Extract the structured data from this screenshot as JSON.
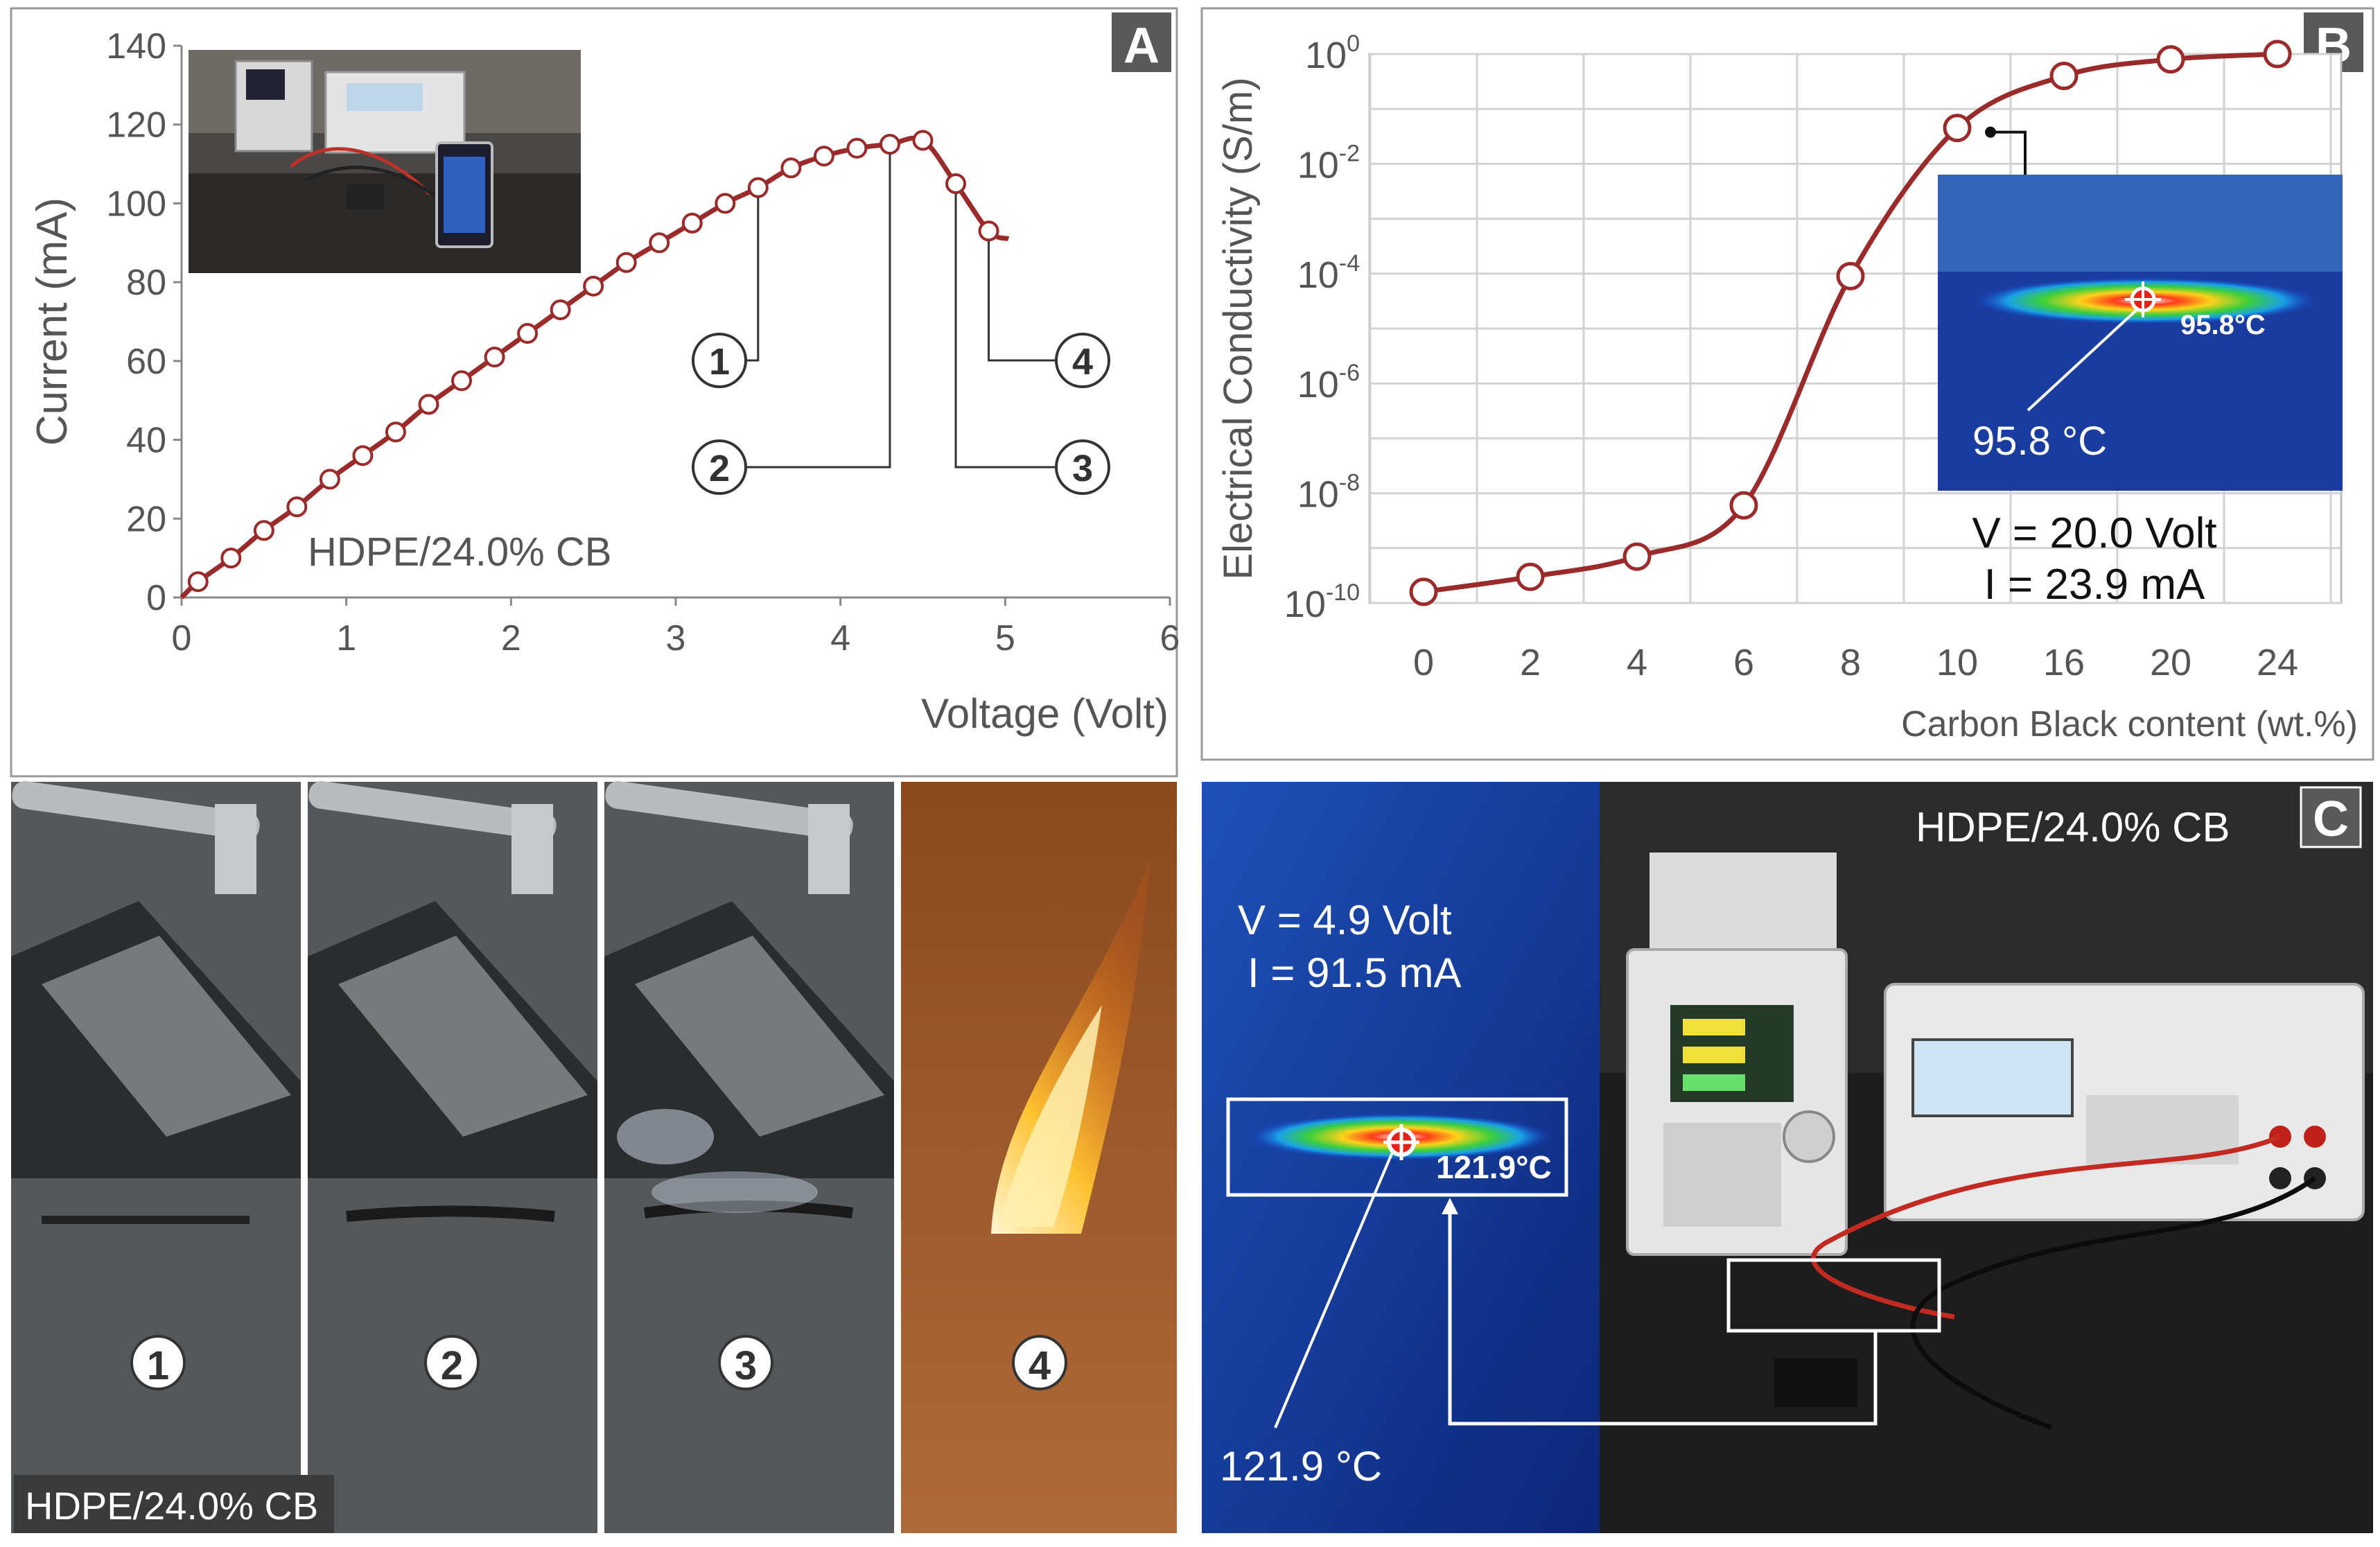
{
  "panels": {
    "a": {
      "label": "A"
    },
    "b": {
      "label": "B"
    },
    "c": {
      "label": "C"
    }
  },
  "chart_data": [
    {
      "type": "line",
      "panel": "A",
      "xlabel": "Voltage (Volt)",
      "ylabel": "Current (mA)",
      "xlim": [
        0,
        6
      ],
      "ylim": [
        0,
        140
      ],
      "xticks": [
        "0",
        "1",
        "2",
        "3",
        "4",
        "5",
        "6"
      ],
      "yticks": [
        "0",
        "20",
        "40",
        "60",
        "80",
        "100",
        "120",
        "140"
      ],
      "grid": false,
      "annotation": "HDPE/24.0% CB",
      "x": [
        0.1,
        0.3,
        0.5,
        0.7,
        0.9,
        1.1,
        1.3,
        1.5,
        1.7,
        1.9,
        2.1,
        2.3,
        2.5,
        2.7,
        2.9,
        3.1,
        3.3,
        3.5,
        3.7,
        3.9,
        4.1,
        4.3,
        4.5,
        4.7,
        4.9
      ],
      "y": [
        4,
        10,
        17,
        23,
        30,
        36,
        42,
        49,
        55,
        61,
        67,
        73,
        79,
        85,
        90,
        95,
        100,
        104,
        109,
        112,
        114,
        115,
        116,
        105,
        93
      ],
      "curve_end": [
        5.02,
        91
      ],
      "markers": [
        {
          "num": "1",
          "x": 3.5
        },
        {
          "num": "2",
          "x": 4.3
        },
        {
          "num": "3",
          "x": 4.7
        },
        {
          "num": "4",
          "x": 4.9
        }
      ]
    },
    {
      "type": "line",
      "panel": "B",
      "xlabel": "Carbon Black content (wt.%)",
      "ylabel": "Electrical Conductivity (S/m)",
      "yscale": "log",
      "ylim": [
        1e-10,
        1
      ],
      "yticks": [
        {
          "base": "10",
          "exp": "0"
        },
        {
          "base": "10",
          "exp": "-2"
        },
        {
          "base": "10",
          "exp": "-4"
        },
        {
          "base": "10",
          "exp": "-6"
        },
        {
          "base": "10",
          "exp": "-8"
        },
        {
          "base": "10",
          "exp": "-10"
        }
      ],
      "grid": true,
      "categories": [
        "0",
        "2",
        "4",
        "6",
        "8",
        "10",
        "16",
        "20",
        "24"
      ],
      "values": [
        1.6e-10,
        3e-10,
        7e-10,
        6e-09,
        9e-05,
        0.045,
        0.4,
        0.8,
        1.0
      ],
      "inset_temp_label": "95.8 °C",
      "inset_thermal_readout": "95.8°C",
      "conditions": [
        "V = 20.0  Volt",
        "I = 23.9 mA"
      ]
    }
  ],
  "photos": {
    "strip_badges": [
      "1",
      "2",
      "3",
      "4"
    ],
    "strip_caption": "HDPE/24.0% CB",
    "thermal_readings": [
      "V = 4.9  Volt",
      "I = 91.5 mA"
    ],
    "thermal_readout": "121.9°C",
    "thermal_temp_label": "121.9 °C",
    "setup_caption": "HDPE/24.0% CB"
  },
  "colors": {
    "curve": "#9b2a2a",
    "badge": "#555555",
    "thermal_bg": "#1a3a9a"
  }
}
